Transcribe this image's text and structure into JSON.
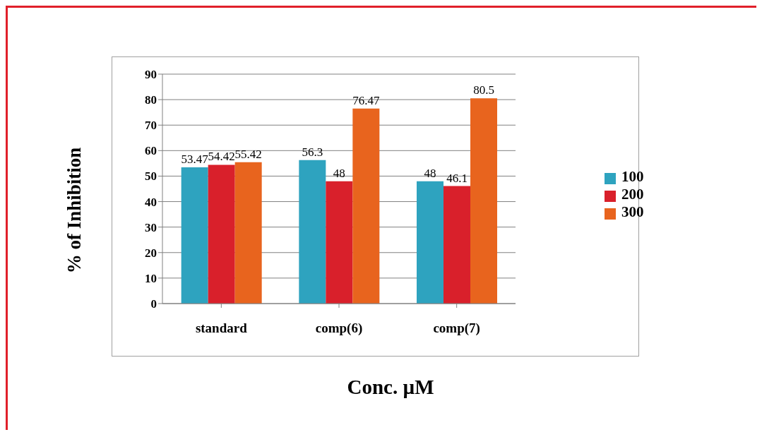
{
  "chart_data": {
    "type": "bar",
    "xlabel": "Conc. µM",
    "ylabel": "% of Inhibition",
    "categories": [
      "standard",
      "comp(6)",
      "comp(7)"
    ],
    "series": [
      {
        "name": "100",
        "color": "#2ea3bf",
        "values": [
          53.47,
          56.3,
          48
        ]
      },
      {
        "name": "200",
        "color": "#d9202b",
        "values": [
          54.42,
          48,
          46.1
        ]
      },
      {
        "name": "300",
        "color": "#e8641e",
        "values": [
          55.42,
          76.47,
          80.5
        ]
      }
    ],
    "ylim": [
      0,
      90
    ],
    "yticks": [
      0,
      10,
      20,
      30,
      40,
      50,
      60,
      70,
      80,
      90
    ],
    "grid": "y",
    "legend": "right",
    "data_labels": true
  }
}
